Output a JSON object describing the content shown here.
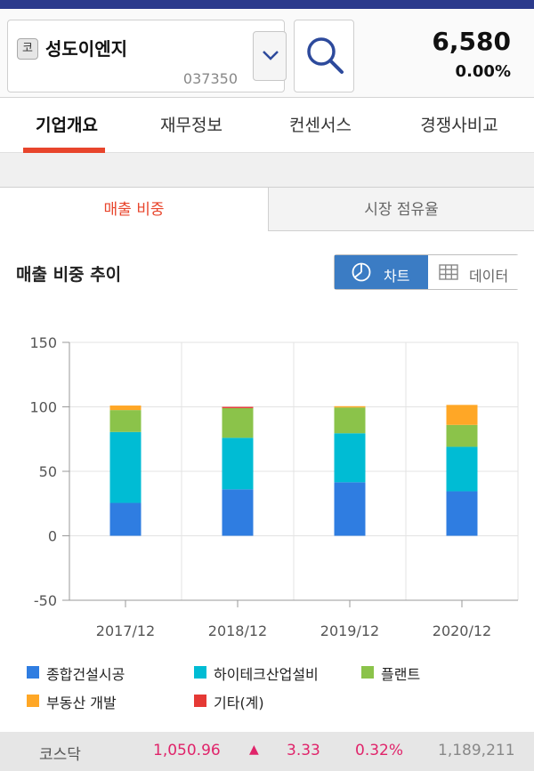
{
  "stock": {
    "market_badge": "코",
    "name": "성도이엔지",
    "code": "037350",
    "price": "6,580",
    "change_pct": "0.00%"
  },
  "main_tabs": [
    "기업개요",
    "재무정보",
    "컨센서스",
    "경쟁사비교"
  ],
  "sub_tabs": {
    "active": "매출 비중",
    "inactive": "시장 점유율"
  },
  "section": {
    "title": "매출 비중 추이",
    "chart_toggle": "차트",
    "data_toggle": "데이터"
  },
  "chart_data": {
    "type": "bar",
    "stacked": true,
    "categories": [
      "2017/12",
      "2018/12",
      "2019/12",
      "2020/12"
    ],
    "ylim": [
      -50,
      150
    ],
    "yticks": [
      150,
      100,
      50,
      0,
      -50
    ],
    "grid": true,
    "legend_position": "bottom",
    "series": [
      {
        "name": "종합건설시공",
        "color": "#2f7de1",
        "values": [
          25.5,
          36,
          41.5,
          34.5
        ]
      },
      {
        "name": "하이테크산업설비",
        "color": "#00bcd4",
        "values": [
          55,
          40,
          38,
          34.5
        ]
      },
      {
        "name": "플랜트",
        "color": "#8bc34a",
        "values": [
          17,
          23,
          20,
          17
        ]
      },
      {
        "name": "부동산 개발",
        "color": "#ffa726",
        "values": [
          3.5,
          0,
          1,
          15.5
        ]
      },
      {
        "name": "기타(계)",
        "color": "#e53935",
        "values": [
          0,
          1,
          0,
          0
        ]
      }
    ]
  },
  "ticker": {
    "name": "코스닥",
    "value": "1,050.96",
    "arrow": "▲",
    "change": "3.33",
    "change_pct": "0.32%",
    "volume": "1,189,211"
  }
}
